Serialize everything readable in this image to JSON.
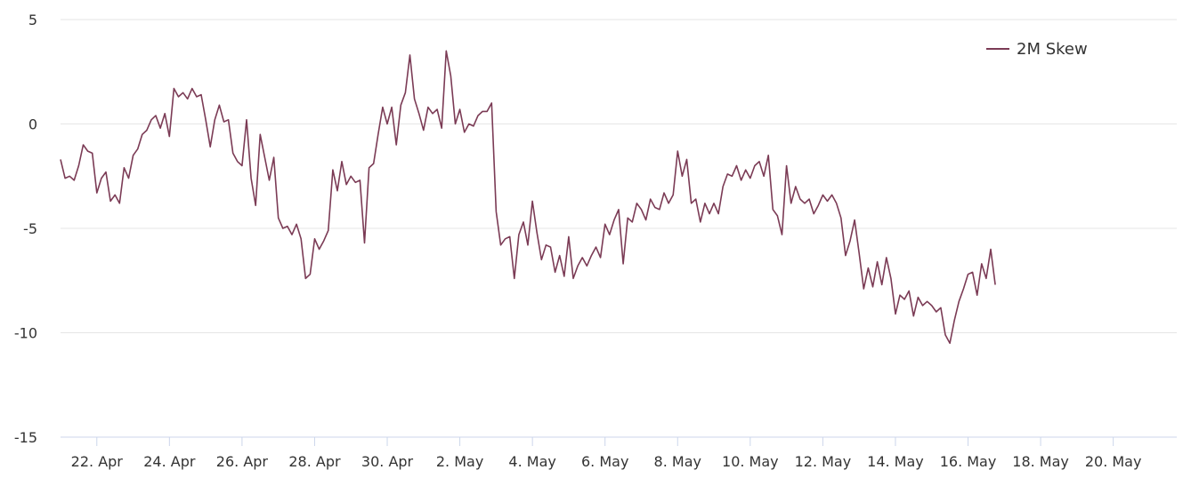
{
  "chart_data": {
    "type": "line",
    "title": "",
    "xlabel": "",
    "ylabel": "",
    "ylim": [
      -15,
      5
    ],
    "yticks": [
      "5",
      "0",
      "-5",
      "-10",
      "-15"
    ],
    "xlim": [
      "2022-04-21",
      "2022-05-21T18:00"
    ],
    "xticks": [
      {
        "label": "22. Apr",
        "date": "2022-04-22"
      },
      {
        "label": "24. Apr",
        "date": "2022-04-24"
      },
      {
        "label": "26. Apr",
        "date": "2022-04-26"
      },
      {
        "label": "28. Apr",
        "date": "2022-04-28"
      },
      {
        "label": "30. Apr",
        "date": "2022-04-30"
      },
      {
        "label": "2. May",
        "date": "2022-05-02"
      },
      {
        "label": "4. May",
        "date": "2022-05-04"
      },
      {
        "label": "6. May",
        "date": "2022-05-06"
      },
      {
        "label": "8. May",
        "date": "2022-05-08"
      },
      {
        "label": "10. May",
        "date": "2022-05-10"
      },
      {
        "label": "12. May",
        "date": "2022-05-12"
      },
      {
        "label": "14. May",
        "date": "2022-05-14"
      },
      {
        "label": "16. May",
        "date": "2022-05-16"
      },
      {
        "label": "18. May",
        "date": "2022-05-18"
      },
      {
        "label": "20. May",
        "date": "2022-05-20"
      }
    ],
    "grid": true,
    "legend_position": "top-right",
    "series": [
      {
        "name": "2M Skew",
        "color": "#7b3b55",
        "points": [
          [
            "2022-04-21T00:00",
            -1.7
          ],
          [
            "2022-04-21T03:00",
            -2.6
          ],
          [
            "2022-04-21T06:00",
            -2.5
          ],
          [
            "2022-04-21T09:00",
            -2.7
          ],
          [
            "2022-04-21T12:00",
            -2.0
          ],
          [
            "2022-04-21T15:00",
            -1.0
          ],
          [
            "2022-04-21T18:00",
            -1.3
          ],
          [
            "2022-04-21T21:00",
            -1.4
          ],
          [
            "2022-04-22T00:00",
            -3.3
          ],
          [
            "2022-04-22T03:00",
            -2.6
          ],
          [
            "2022-04-22T06:00",
            -2.3
          ],
          [
            "2022-04-22T09:00",
            -3.7
          ],
          [
            "2022-04-22T12:00",
            -3.4
          ],
          [
            "2022-04-22T15:00",
            -3.8
          ],
          [
            "2022-04-22T18:00",
            -2.1
          ],
          [
            "2022-04-22T21:00",
            -2.6
          ],
          [
            "2022-04-23T00:00",
            -1.5
          ],
          [
            "2022-04-23T03:00",
            -1.2
          ],
          [
            "2022-04-23T06:00",
            -0.5
          ],
          [
            "2022-04-23T09:00",
            -0.3
          ],
          [
            "2022-04-23T12:00",
            0.2
          ],
          [
            "2022-04-23T15:00",
            0.4
          ],
          [
            "2022-04-23T18:00",
            -0.2
          ],
          [
            "2022-04-23T21:00",
            0.5
          ],
          [
            "2022-04-24T00:00",
            -0.6
          ],
          [
            "2022-04-24T03:00",
            1.7
          ],
          [
            "2022-04-24T06:00",
            1.3
          ],
          [
            "2022-04-24T09:00",
            1.5
          ],
          [
            "2022-04-24T12:00",
            1.2
          ],
          [
            "2022-04-24T15:00",
            1.7
          ],
          [
            "2022-04-24T18:00",
            1.3
          ],
          [
            "2022-04-24T21:00",
            1.4
          ],
          [
            "2022-04-25T00:00",
            0.2
          ],
          [
            "2022-04-25T03:00",
            -1.1
          ],
          [
            "2022-04-25T06:00",
            0.2
          ],
          [
            "2022-04-25T09:00",
            0.9
          ],
          [
            "2022-04-25T12:00",
            0.1
          ],
          [
            "2022-04-25T15:00",
            0.2
          ],
          [
            "2022-04-25T18:00",
            -1.4
          ],
          [
            "2022-04-25T21:00",
            -1.8
          ],
          [
            "2022-04-26T00:00",
            -2.0
          ],
          [
            "2022-04-26T03:00",
            0.2
          ],
          [
            "2022-04-26T06:00",
            -2.6
          ],
          [
            "2022-04-26T09:00",
            -3.9
          ],
          [
            "2022-04-26T12:00",
            -0.5
          ],
          [
            "2022-04-26T15:00",
            -1.6
          ],
          [
            "2022-04-26T18:00",
            -2.7
          ],
          [
            "2022-04-26T21:00",
            -1.6
          ],
          [
            "2022-04-27T00:00",
            -4.5
          ],
          [
            "2022-04-27T03:00",
            -5.0
          ],
          [
            "2022-04-27T06:00",
            -4.9
          ],
          [
            "2022-04-27T09:00",
            -5.3
          ],
          [
            "2022-04-27T12:00",
            -4.8
          ],
          [
            "2022-04-27T15:00",
            -5.5
          ],
          [
            "2022-04-27T18:00",
            -7.4
          ],
          [
            "2022-04-27T21:00",
            -7.2
          ],
          [
            "2022-04-28T00:00",
            -5.5
          ],
          [
            "2022-04-28T03:00",
            -6.0
          ],
          [
            "2022-04-28T06:00",
            -5.6
          ],
          [
            "2022-04-28T09:00",
            -5.1
          ],
          [
            "2022-04-28T12:00",
            -2.2
          ],
          [
            "2022-04-28T15:00",
            -3.2
          ],
          [
            "2022-04-28T18:00",
            -1.8
          ],
          [
            "2022-04-28T21:00",
            -2.9
          ],
          [
            "2022-04-29T00:00",
            -2.5
          ],
          [
            "2022-04-29T03:00",
            -2.8
          ],
          [
            "2022-04-29T06:00",
            -2.7
          ],
          [
            "2022-04-29T09:00",
            -5.7
          ],
          [
            "2022-04-29T12:00",
            -2.1
          ],
          [
            "2022-04-29T15:00",
            -1.9
          ],
          [
            "2022-04-29T18:00",
            -0.5
          ],
          [
            "2022-04-29T21:00",
            0.8
          ],
          [
            "2022-04-30T00:00",
            0.0
          ],
          [
            "2022-04-30T03:00",
            0.8
          ],
          [
            "2022-04-30T06:00",
            -1.0
          ],
          [
            "2022-04-30T09:00",
            0.9
          ],
          [
            "2022-04-30T12:00",
            1.5
          ],
          [
            "2022-04-30T15:00",
            3.3
          ],
          [
            "2022-04-30T18:00",
            1.2
          ],
          [
            "2022-04-30T21:00",
            0.5
          ],
          [
            "2022-05-01T00:00",
            -0.3
          ],
          [
            "2022-05-01T03:00",
            0.8
          ],
          [
            "2022-05-01T06:00",
            0.5
          ],
          [
            "2022-05-01T09:00",
            0.7
          ],
          [
            "2022-05-01T12:00",
            -0.2
          ],
          [
            "2022-05-01T15:00",
            3.5
          ],
          [
            "2022-05-01T18:00",
            2.3
          ],
          [
            "2022-05-01T21:00",
            0.0
          ],
          [
            "2022-05-02T00:00",
            0.7
          ],
          [
            "2022-05-02T03:00",
            -0.4
          ],
          [
            "2022-05-02T06:00",
            0.0
          ],
          [
            "2022-05-02T09:00",
            -0.1
          ],
          [
            "2022-05-02T12:00",
            0.4
          ],
          [
            "2022-05-02T15:00",
            0.6
          ],
          [
            "2022-05-02T18:00",
            0.6
          ],
          [
            "2022-05-02T21:00",
            1.0
          ],
          [
            "2022-05-03T00:00",
            -4.2
          ],
          [
            "2022-05-03T03:00",
            -5.8
          ],
          [
            "2022-05-03T06:00",
            -5.5
          ],
          [
            "2022-05-03T09:00",
            -5.4
          ],
          [
            "2022-05-03T12:00",
            -7.4
          ],
          [
            "2022-05-03T15:00",
            -5.3
          ],
          [
            "2022-05-03T18:00",
            -4.7
          ],
          [
            "2022-05-03T21:00",
            -5.8
          ],
          [
            "2022-05-04T00:00",
            -3.7
          ],
          [
            "2022-05-04T03:00",
            -5.2
          ],
          [
            "2022-05-04T06:00",
            -6.5
          ],
          [
            "2022-05-04T09:00",
            -5.8
          ],
          [
            "2022-05-04T12:00",
            -5.9
          ],
          [
            "2022-05-04T15:00",
            -7.1
          ],
          [
            "2022-05-04T18:00",
            -6.3
          ],
          [
            "2022-05-04T21:00",
            -7.3
          ],
          [
            "2022-05-05T00:00",
            -5.4
          ],
          [
            "2022-05-05T03:00",
            -7.4
          ],
          [
            "2022-05-05T06:00",
            -6.8
          ],
          [
            "2022-05-05T09:00",
            -6.4
          ],
          [
            "2022-05-05T12:00",
            -6.8
          ],
          [
            "2022-05-05T15:00",
            -6.3
          ],
          [
            "2022-05-05T18:00",
            -5.9
          ],
          [
            "2022-05-05T21:00",
            -6.4
          ],
          [
            "2022-05-06T00:00",
            -4.8
          ],
          [
            "2022-05-06T03:00",
            -5.3
          ],
          [
            "2022-05-06T06:00",
            -4.6
          ],
          [
            "2022-05-06T09:00",
            -4.1
          ],
          [
            "2022-05-06T12:00",
            -6.7
          ],
          [
            "2022-05-06T15:00",
            -4.5
          ],
          [
            "2022-05-06T18:00",
            -4.7
          ],
          [
            "2022-05-06T21:00",
            -3.8
          ],
          [
            "2022-05-07T00:00",
            -4.1
          ],
          [
            "2022-05-07T03:00",
            -4.6
          ],
          [
            "2022-05-07T06:00",
            -3.6
          ],
          [
            "2022-05-07T09:00",
            -4.0
          ],
          [
            "2022-05-07T12:00",
            -4.1
          ],
          [
            "2022-05-07T15:00",
            -3.3
          ],
          [
            "2022-05-07T18:00",
            -3.8
          ],
          [
            "2022-05-07T21:00",
            -3.4
          ],
          [
            "2022-05-08T00:00",
            -1.3
          ],
          [
            "2022-05-08T03:00",
            -2.5
          ],
          [
            "2022-05-08T06:00",
            -1.7
          ],
          [
            "2022-05-08T09:00",
            -3.8
          ],
          [
            "2022-05-08T12:00",
            -3.6
          ],
          [
            "2022-05-08T15:00",
            -4.7
          ],
          [
            "2022-05-08T18:00",
            -3.8
          ],
          [
            "2022-05-08T21:00",
            -4.3
          ],
          [
            "2022-05-09T00:00",
            -3.8
          ],
          [
            "2022-05-09T03:00",
            -4.3
          ],
          [
            "2022-05-09T06:00",
            -3.0
          ],
          [
            "2022-05-09T09:00",
            -2.4
          ],
          [
            "2022-05-09T12:00",
            -2.5
          ],
          [
            "2022-05-09T15:00",
            -2.0
          ],
          [
            "2022-05-09T18:00",
            -2.7
          ],
          [
            "2022-05-09T21:00",
            -2.2
          ],
          [
            "2022-05-10T00:00",
            -2.6
          ],
          [
            "2022-05-10T03:00",
            -2.0
          ],
          [
            "2022-05-10T06:00",
            -1.8
          ],
          [
            "2022-05-10T09:00",
            -2.5
          ],
          [
            "2022-05-10T12:00",
            -1.5
          ],
          [
            "2022-05-10T15:00",
            -4.1
          ],
          [
            "2022-05-10T18:00",
            -4.4
          ],
          [
            "2022-05-10T21:00",
            -5.3
          ],
          [
            "2022-05-11T00:00",
            -2.0
          ],
          [
            "2022-05-11T03:00",
            -3.8
          ],
          [
            "2022-05-11T06:00",
            -3.0
          ],
          [
            "2022-05-11T09:00",
            -3.6
          ],
          [
            "2022-05-11T12:00",
            -3.8
          ],
          [
            "2022-05-11T15:00",
            -3.6
          ],
          [
            "2022-05-11T18:00",
            -4.3
          ],
          [
            "2022-05-11T21:00",
            -3.9
          ],
          [
            "2022-05-12T00:00",
            -3.4
          ],
          [
            "2022-05-12T03:00",
            -3.7
          ],
          [
            "2022-05-12T06:00",
            -3.4
          ],
          [
            "2022-05-12T09:00",
            -3.8
          ],
          [
            "2022-05-12T12:00",
            -4.5
          ],
          [
            "2022-05-12T15:00",
            -6.3
          ],
          [
            "2022-05-12T18:00",
            -5.6
          ],
          [
            "2022-05-12T21:00",
            -4.6
          ],
          [
            "2022-05-13T00:00",
            -6.2
          ],
          [
            "2022-05-13T03:00",
            -7.9
          ],
          [
            "2022-05-13T06:00",
            -6.9
          ],
          [
            "2022-05-13T09:00",
            -7.8
          ],
          [
            "2022-05-13T12:00",
            -6.6
          ],
          [
            "2022-05-13T15:00",
            -7.7
          ],
          [
            "2022-05-13T18:00",
            -6.4
          ],
          [
            "2022-05-13T21:00",
            -7.4
          ],
          [
            "2022-05-14T00:00",
            -9.1
          ],
          [
            "2022-05-14T03:00",
            -8.2
          ],
          [
            "2022-05-14T06:00",
            -8.4
          ],
          [
            "2022-05-14T09:00",
            -8.0
          ],
          [
            "2022-05-14T12:00",
            -9.2
          ],
          [
            "2022-05-14T15:00",
            -8.3
          ],
          [
            "2022-05-14T18:00",
            -8.7
          ],
          [
            "2022-05-14T21:00",
            -8.5
          ],
          [
            "2022-05-15T00:00",
            -8.7
          ],
          [
            "2022-05-15T03:00",
            -9.0
          ],
          [
            "2022-05-15T06:00",
            -8.8
          ],
          [
            "2022-05-15T09:00",
            -10.1
          ],
          [
            "2022-05-15T12:00",
            -10.5
          ],
          [
            "2022-05-15T15:00",
            -9.4
          ],
          [
            "2022-05-15T18:00",
            -8.5
          ],
          [
            "2022-05-15T21:00",
            -7.9
          ],
          [
            "2022-05-16T00:00",
            -7.2
          ],
          [
            "2022-05-16T03:00",
            -7.1
          ],
          [
            "2022-05-16T06:00",
            -8.2
          ],
          [
            "2022-05-16T09:00",
            -6.7
          ],
          [
            "2022-05-16T12:00",
            -7.4
          ],
          [
            "2022-05-16T15:00",
            -6.0
          ],
          [
            "2022-05-16T18:00",
            -7.7
          ]
        ]
      }
    ]
  }
}
